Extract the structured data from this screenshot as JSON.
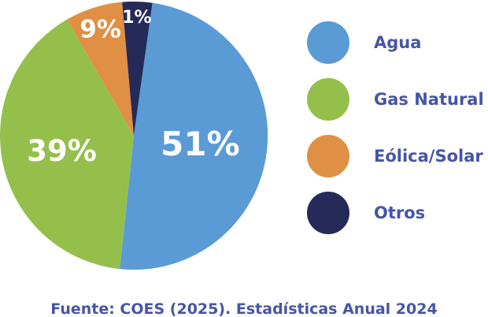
{
  "chart_data": {
    "type": "pie",
    "title": "",
    "categories": [
      "Agua",
      "Gas Natural",
      "Eólica/Solar",
      "Otros"
    ],
    "values": [
      51,
      39,
      9,
      1
    ],
    "unit": "%",
    "legend_position": "right",
    "slices": [
      {
        "id": "agua",
        "name": "Agua",
        "value": 51,
        "label": "51%",
        "color": "#5b9bd5",
        "start_angle": 8,
        "end_angle": 186,
        "label_r": 0.5,
        "label_size": 42
      },
      {
        "id": "gas-natural",
        "name": "Gas Natural",
        "value": 39,
        "label": "39%",
        "color": "#95bf4b",
        "start_angle": 186,
        "end_angle": 330,
        "label_r": 0.55,
        "label_size": 37
      },
      {
        "id": "eolica-solar",
        "name": "Eólica/Solar",
        "value": 9,
        "label": "9%",
        "color": "#df9044",
        "start_angle": 330,
        "end_angle": 355,
        "label_r": 0.83,
        "label_size": 31
      },
      {
        "id": "otros",
        "name": "Otros",
        "value": 1,
        "label": "1%",
        "color": "#252a58",
        "start_angle": 355,
        "end_angle": 368,
        "label_r": 0.88,
        "label_size": 22
      }
    ]
  },
  "caption": {
    "text": "Fuente: COES (2025). Estadísticas Anual 2024"
  },
  "colors": {
    "background": "#ffffff",
    "slice_label_text": "#ffffff",
    "legend_text": "#4655a6",
    "caption_text": "#4655a6"
  }
}
